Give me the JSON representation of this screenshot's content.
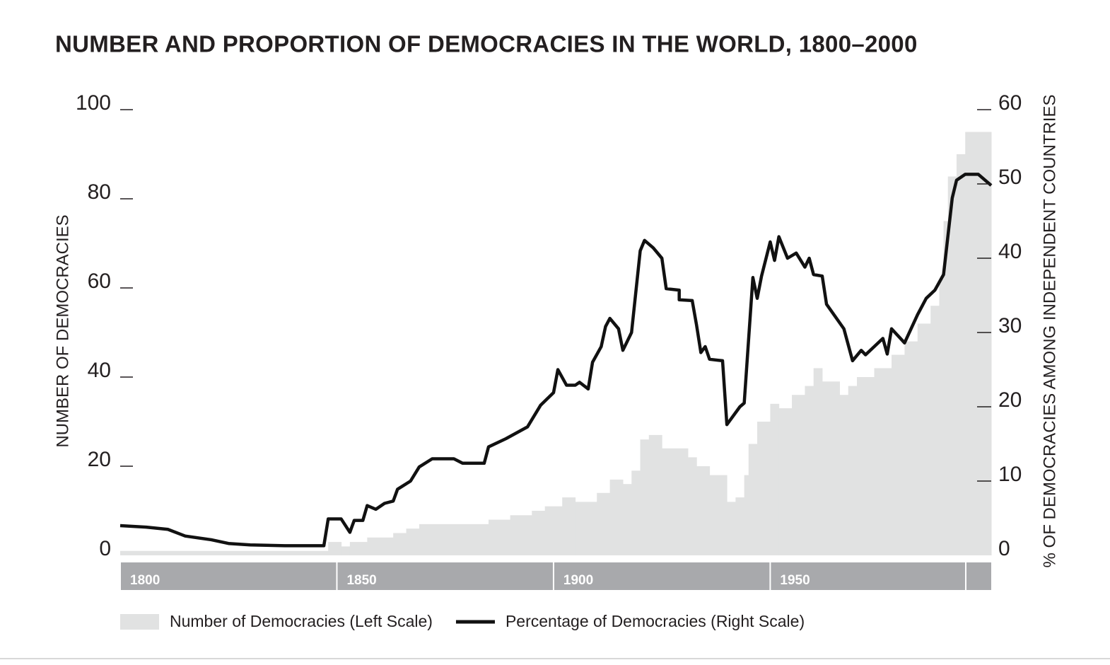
{
  "chart_data": {
    "type": "combo",
    "title": "NUMBER AND PROPORTION OF DEMOCRACIES IN THE WORLD, 1800–2000",
    "ylabel": "NUMBER OF DEMOCRACIES",
    "y2label": "% OF DEMOCRACIES AMONG INDEPENDENT COUNTRIES",
    "xlim": [
      1800,
      2001
    ],
    "xticks": [
      1800,
      1850,
      1900,
      1950
    ],
    "ylim": [
      0,
      100
    ],
    "yticks": [
      0,
      20,
      40,
      60,
      80,
      100
    ],
    "y2lim": [
      0,
      60
    ],
    "y2ticks": [
      0,
      10,
      20,
      30,
      40,
      50,
      60
    ],
    "series": [
      {
        "name": "Number of Democracies (Left Scale)",
        "type": "area",
        "color": "#e1e2e2",
        "x": [
          1800,
          1848,
          1851,
          1853,
          1857,
          1863,
          1866,
          1869,
          1885,
          1890,
          1895,
          1898,
          1902,
          1905,
          1910,
          1913,
          1916,
          1918,
          1920,
          1922,
          1925,
          1931,
          1933,
          1936,
          1940,
          1942,
          1944,
          1945,
          1947,
          1950,
          1952,
          1955,
          1958,
          1960,
          1962,
          1966,
          1968,
          1970,
          1974,
          1978,
          1981,
          1984,
          1987,
          1989,
          1990,
          1991,
          1993,
          1995
        ],
        "values": [
          1,
          3,
          2,
          3,
          4,
          5,
          6,
          7,
          8,
          9,
          10,
          11,
          13,
          12,
          14,
          17,
          16,
          19,
          26,
          27,
          24,
          22,
          20,
          18,
          12,
          13,
          18,
          25,
          30,
          34,
          33,
          36,
          38,
          42,
          39,
          36,
          38,
          40,
          42,
          45,
          48,
          52,
          56,
          62,
          75,
          85,
          90,
          95
        ]
      },
      {
        "name": "Percentage of Democracies (Right Scale)",
        "type": "line",
        "color": "#111111",
        "axis": "y2",
        "x": [
          1800,
          1806,
          1811,
          1815,
          1821,
          1825,
          1830,
          1838,
          1847,
          1848,
          1851,
          1853,
          1854,
          1856,
          1857,
          1859,
          1861,
          1863,
          1864,
          1867,
          1869,
          1872,
          1877,
          1879,
          1884,
          1885,
          1889,
          1894,
          1897,
          1900,
          1901,
          1903,
          1905,
          1906,
          1908,
          1909,
          1911,
          1912,
          1913,
          1915,
          1916,
          1918,
          1920,
          1921,
          1923,
          1925,
          1926,
          1929,
          1929,
          1932,
          1933,
          1934,
          1935,
          1936,
          1939,
          1940,
          1943,
          1944,
          1946,
          1947,
          1948,
          1950,
          1951,
          1952,
          1954,
          1956,
          1958,
          1959,
          1960,
          1962,
          1963,
          1967,
          1969,
          1971,
          1972,
          1976,
          1977,
          1978,
          1981,
          1984,
          1986,
          1988,
          1990,
          1992,
          1993,
          1995,
          1998,
          2001
        ],
        "values": [
          4.0,
          3.8,
          3.5,
          2.6,
          2.1,
          1.6,
          1.4,
          1.3,
          1.3,
          4.9,
          4.9,
          3.1,
          4.7,
          4.7,
          6.7,
          6.2,
          7.0,
          7.3,
          8.9,
          10.0,
          11.9,
          13.0,
          13.0,
          12.4,
          12.4,
          14.6,
          15.7,
          17.3,
          20.2,
          21.9,
          25.0,
          22.9,
          22.9,
          23.3,
          22.4,
          26.0,
          28.1,
          30.8,
          31.9,
          30.5,
          27.6,
          30.0,
          41.0,
          42.4,
          41.4,
          40.0,
          35.9,
          35.7,
          34.4,
          34.3,
          31.0,
          27.3,
          28.1,
          26.4,
          26.2,
          17.6,
          20.0,
          20.5,
          37.4,
          34.6,
          37.6,
          42.2,
          39.7,
          42.9,
          40.0,
          40.7,
          38.8,
          40.0,
          37.8,
          37.6,
          33.8,
          30.5,
          26.2,
          27.6,
          27.0,
          29.2,
          27.1,
          30.5,
          28.6,
          32.4,
          34.6,
          35.7,
          37.8,
          48.1,
          50.5,
          51.3,
          51.3,
          49.8
        ]
      }
    ]
  }
}
